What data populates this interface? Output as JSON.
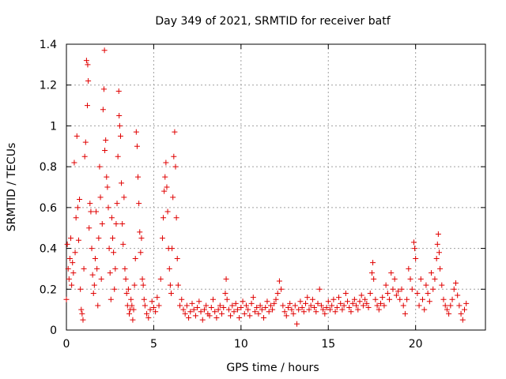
{
  "chart_data": {
    "type": "scatter",
    "title": "Day 349 of 2021, SRMTID for receiver batf",
    "xlabel": "GPS time / hours",
    "ylabel": "SRMTID / TECUs",
    "xlim": [
      0,
      24
    ],
    "ylim": [
      0,
      1.4
    ],
    "xticks": [
      0,
      5,
      10,
      15,
      20
    ],
    "yticks": [
      0,
      0.2,
      0.4,
      0.6,
      0.8,
      1,
      1.2,
      1.4
    ],
    "xtick_labels": [
      "0",
      "5",
      "10",
      "15",
      "20"
    ],
    "ytick_labels": [
      "0",
      "0.2",
      "0.4",
      "0.6",
      "0.8",
      "1",
      "1.2",
      "1.4"
    ],
    "grid": true,
    "marker": "+",
    "series": [
      {
        "name": "batf",
        "color": "#e00000",
        "points": [
          [
            0.0,
            0.15
          ],
          [
            0.05,
            0.42
          ],
          [
            0.1,
            0.3
          ],
          [
            0.15,
            0.25
          ],
          [
            0.2,
            0.35
          ],
          [
            0.25,
            0.45
          ],
          [
            0.3,
            0.22
          ],
          [
            0.35,
            0.33
          ],
          [
            0.4,
            0.28
          ],
          [
            0.45,
            0.82
          ],
          [
            0.5,
            0.38
          ],
          [
            0.55,
            0.55
          ],
          [
            0.6,
            0.95
          ],
          [
            0.65,
            0.6
          ],
          [
            0.7,
            0.44
          ],
          [
            0.75,
            0.64
          ],
          [
            0.8,
            0.2
          ],
          [
            0.85,
            0.1
          ],
          [
            0.9,
            0.08
          ],
          [
            0.95,
            0.05
          ],
          [
            1.0,
            0.3
          ],
          [
            1.05,
            0.85
          ],
          [
            1.1,
            0.92
          ],
          [
            1.15,
            1.32
          ],
          [
            1.2,
            1.1
          ],
          [
            1.22,
            1.3
          ],
          [
            1.25,
            1.22
          ],
          [
            1.3,
            0.5
          ],
          [
            1.35,
            0.62
          ],
          [
            1.4,
            0.58
          ],
          [
            1.45,
            0.4
          ],
          [
            1.5,
            0.27
          ],
          [
            1.55,
            0.18
          ],
          [
            1.6,
            0.22
          ],
          [
            1.65,
            0.35
          ],
          [
            1.7,
            0.58
          ],
          [
            1.75,
            0.3
          ],
          [
            1.8,
            0.12
          ],
          [
            1.85,
            0.45
          ],
          [
            1.9,
            0.8
          ],
          [
            1.95,
            0.65
          ],
          [
            2.0,
            0.25
          ],
          [
            2.05,
            0.52
          ],
          [
            2.1,
            1.08
          ],
          [
            2.15,
            1.18
          ],
          [
            2.18,
            1.37
          ],
          [
            2.2,
            0.88
          ],
          [
            2.25,
            0.93
          ],
          [
            2.3,
            0.75
          ],
          [
            2.35,
            0.7
          ],
          [
            2.4,
            0.6
          ],
          [
            2.45,
            0.4
          ],
          [
            2.5,
            0.28
          ],
          [
            2.55,
            0.15
          ],
          [
            2.6,
            0.55
          ],
          [
            2.65,
            0.45
          ],
          [
            2.7,
            0.38
          ],
          [
            2.75,
            0.2
          ],
          [
            2.8,
            0.3
          ],
          [
            2.85,
            0.52
          ],
          [
            2.9,
            0.62
          ],
          [
            2.95,
            0.85
          ],
          [
            3.0,
            1.17
          ],
          [
            3.02,
            1.05
          ],
          [
            3.05,
            1.0
          ],
          [
            3.1,
            0.95
          ],
          [
            3.15,
            0.72
          ],
          [
            3.2,
            0.52
          ],
          [
            3.25,
            0.42
          ],
          [
            3.3,
            0.65
          ],
          [
            3.35,
            0.3
          ],
          [
            3.4,
            0.25
          ],
          [
            3.45,
            0.18
          ],
          [
            3.5,
            0.12
          ],
          [
            3.55,
            0.2
          ],
          [
            3.6,
            0.08
          ],
          [
            3.65,
            0.1
          ],
          [
            3.7,
            0.15
          ],
          [
            3.75,
            0.12
          ],
          [
            3.8,
            0.05
          ],
          [
            3.85,
            0.1
          ],
          [
            3.9,
            0.22
          ],
          [
            3.95,
            0.35
          ],
          [
            4.0,
            0.97
          ],
          [
            4.05,
            0.9
          ],
          [
            4.1,
            0.75
          ],
          [
            4.15,
            0.62
          ],
          [
            4.2,
            0.48
          ],
          [
            4.25,
            0.38
          ],
          [
            4.3,
            0.45
          ],
          [
            4.35,
            0.25
          ],
          [
            4.4,
            0.22
          ],
          [
            4.45,
            0.15
          ],
          [
            4.5,
            0.12
          ],
          [
            4.6,
            0.08
          ],
          [
            4.7,
            0.06
          ],
          [
            4.8,
            0.1
          ],
          [
            4.9,
            0.14
          ],
          [
            5.0,
            0.11
          ],
          [
            5.1,
            0.09
          ],
          [
            5.2,
            0.16
          ],
          [
            5.3,
            0.12
          ],
          [
            5.4,
            0.25
          ],
          [
            5.5,
            0.45
          ],
          [
            5.55,
            0.55
          ],
          [
            5.6,
            0.68
          ],
          [
            5.65,
            0.75
          ],
          [
            5.7,
            0.82
          ],
          [
            5.75,
            0.7
          ],
          [
            5.8,
            0.58
          ],
          [
            5.85,
            0.4
          ],
          [
            5.9,
            0.3
          ],
          [
            5.95,
            0.22
          ],
          [
            6.0,
            0.18
          ],
          [
            6.05,
            0.4
          ],
          [
            6.1,
            0.65
          ],
          [
            6.15,
            0.85
          ],
          [
            6.2,
            0.97
          ],
          [
            6.25,
            0.8
          ],
          [
            6.3,
            0.55
          ],
          [
            6.35,
            0.35
          ],
          [
            6.4,
            0.22
          ],
          [
            6.5,
            0.12
          ],
          [
            6.6,
            0.15
          ],
          [
            6.7,
            0.1
          ],
          [
            6.8,
            0.08
          ],
          [
            6.9,
            0.12
          ],
          [
            7.0,
            0.06
          ],
          [
            7.1,
            0.09
          ],
          [
            7.2,
            0.13
          ],
          [
            7.3,
            0.1
          ],
          [
            7.4,
            0.07
          ],
          [
            7.5,
            0.11
          ],
          [
            7.6,
            0.14
          ],
          [
            7.7,
            0.09
          ],
          [
            7.8,
            0.05
          ],
          [
            7.9,
            0.1
          ],
          [
            8.0,
            0.12
          ],
          [
            8.1,
            0.08
          ],
          [
            8.2,
            0.07
          ],
          [
            8.3,
            0.11
          ],
          [
            8.4,
            0.15
          ],
          [
            8.5,
            0.09
          ],
          [
            8.6,
            0.06
          ],
          [
            8.7,
            0.1
          ],
          [
            8.8,
            0.12
          ],
          [
            8.9,
            0.08
          ],
          [
            9.0,
            0.11
          ],
          [
            9.1,
            0.18
          ],
          [
            9.15,
            0.25
          ],
          [
            9.2,
            0.15
          ],
          [
            9.3,
            0.1
          ],
          [
            9.4,
            0.07
          ],
          [
            9.5,
            0.12
          ],
          [
            9.6,
            0.09
          ],
          [
            9.7,
            0.13
          ],
          [
            9.8,
            0.1
          ],
          [
            9.9,
            0.06
          ],
          [
            10.0,
            0.11
          ],
          [
            10.1,
            0.14
          ],
          [
            10.2,
            0.08
          ],
          [
            10.3,
            0.12
          ],
          [
            10.4,
            0.1
          ],
          [
            10.5,
            0.07
          ],
          [
            10.6,
            0.13
          ],
          [
            10.7,
            0.16
          ],
          [
            10.8,
            0.09
          ],
          [
            10.9,
            0.11
          ],
          [
            11.0,
            0.08
          ],
          [
            11.1,
            0.12
          ],
          [
            11.2,
            0.1
          ],
          [
            11.3,
            0.06
          ],
          [
            11.4,
            0.11
          ],
          [
            11.5,
            0.14
          ],
          [
            11.6,
            0.09
          ],
          [
            11.7,
            0.12
          ],
          [
            11.8,
            0.1
          ],
          [
            11.9,
            0.13
          ],
          [
            12.0,
            0.15
          ],
          [
            12.1,
            0.18
          ],
          [
            12.2,
            0.24
          ],
          [
            12.3,
            0.2
          ],
          [
            12.4,
            0.12
          ],
          [
            12.5,
            0.09
          ],
          [
            12.6,
            0.07
          ],
          [
            12.7,
            0.11
          ],
          [
            12.8,
            0.13
          ],
          [
            12.9,
            0.1
          ],
          [
            13.0,
            0.08
          ],
          [
            13.1,
            0.12
          ],
          [
            13.2,
            0.03
          ],
          [
            13.3,
            0.1
          ],
          [
            13.4,
            0.14
          ],
          [
            13.5,
            0.11
          ],
          [
            13.6,
            0.09
          ],
          [
            13.7,
            0.13
          ],
          [
            13.8,
            0.16
          ],
          [
            13.9,
            0.1
          ],
          [
            14.0,
            0.12
          ],
          [
            14.1,
            0.15
          ],
          [
            14.2,
            0.11
          ],
          [
            14.3,
            0.09
          ],
          [
            14.4,
            0.13
          ],
          [
            14.5,
            0.2
          ],
          [
            14.6,
            0.12
          ],
          [
            14.7,
            0.1
          ],
          [
            14.8,
            0.08
          ],
          [
            14.9,
            0.11
          ],
          [
            15.0,
            0.14
          ],
          [
            15.1,
            0.1
          ],
          [
            15.2,
            0.12
          ],
          [
            15.3,
            0.15
          ],
          [
            15.4,
            0.09
          ],
          [
            15.5,
            0.11
          ],
          [
            15.6,
            0.16
          ],
          [
            15.7,
            0.13
          ],
          [
            15.8,
            0.1
          ],
          [
            15.9,
            0.12
          ],
          [
            16.0,
            0.18
          ],
          [
            16.1,
            0.14
          ],
          [
            16.2,
            0.11
          ],
          [
            16.3,
            0.09
          ],
          [
            16.4,
            0.13
          ],
          [
            16.5,
            0.15
          ],
          [
            16.6,
            0.12
          ],
          [
            16.7,
            0.1
          ],
          [
            16.8,
            0.14
          ],
          [
            16.9,
            0.17
          ],
          [
            17.0,
            0.12
          ],
          [
            17.1,
            0.15
          ],
          [
            17.2,
            0.13
          ],
          [
            17.3,
            0.11
          ],
          [
            17.4,
            0.18
          ],
          [
            17.5,
            0.28
          ],
          [
            17.55,
            0.33
          ],
          [
            17.6,
            0.25
          ],
          [
            17.7,
            0.15
          ],
          [
            17.8,
            0.12
          ],
          [
            17.9,
            0.1
          ],
          [
            18.0,
            0.13
          ],
          [
            18.1,
            0.16
          ],
          [
            18.2,
            0.12
          ],
          [
            18.3,
            0.22
          ],
          [
            18.4,
            0.18
          ],
          [
            18.5,
            0.15
          ],
          [
            18.6,
            0.28
          ],
          [
            18.7,
            0.2
          ],
          [
            18.8,
            0.25
          ],
          [
            18.9,
            0.17
          ],
          [
            19.0,
            0.19
          ],
          [
            19.1,
            0.15
          ],
          [
            19.2,
            0.2
          ],
          [
            19.3,
            0.12
          ],
          [
            19.4,
            0.08
          ],
          [
            19.5,
            0.15
          ],
          [
            19.6,
            0.3
          ],
          [
            19.7,
            0.25
          ],
          [
            19.8,
            0.2
          ],
          [
            19.9,
            0.43
          ],
          [
            19.95,
            0.4
          ],
          [
            20.0,
            0.35
          ],
          [
            20.1,
            0.18
          ],
          [
            20.2,
            0.12
          ],
          [
            20.3,
            0.25
          ],
          [
            20.4,
            0.15
          ],
          [
            20.5,
            0.1
          ],
          [
            20.6,
            0.22
          ],
          [
            20.7,
            0.18
          ],
          [
            20.8,
            0.14
          ],
          [
            20.9,
            0.28
          ],
          [
            21.0,
            0.2
          ],
          [
            21.1,
            0.25
          ],
          [
            21.2,
            0.35
          ],
          [
            21.25,
            0.42
          ],
          [
            21.3,
            0.47
          ],
          [
            21.35,
            0.38
          ],
          [
            21.4,
            0.3
          ],
          [
            21.5,
            0.22
          ],
          [
            21.6,
            0.15
          ],
          [
            21.7,
            0.12
          ],
          [
            21.8,
            0.1
          ],
          [
            21.9,
            0.08
          ],
          [
            22.0,
            0.12
          ],
          [
            22.1,
            0.15
          ],
          [
            22.2,
            0.2
          ],
          [
            22.3,
            0.23
          ],
          [
            22.4,
            0.17
          ],
          [
            22.5,
            0.12
          ],
          [
            22.6,
            0.08
          ],
          [
            22.7,
            0.05
          ],
          [
            22.8,
            0.1
          ],
          [
            22.9,
            0.13
          ]
        ]
      }
    ]
  }
}
